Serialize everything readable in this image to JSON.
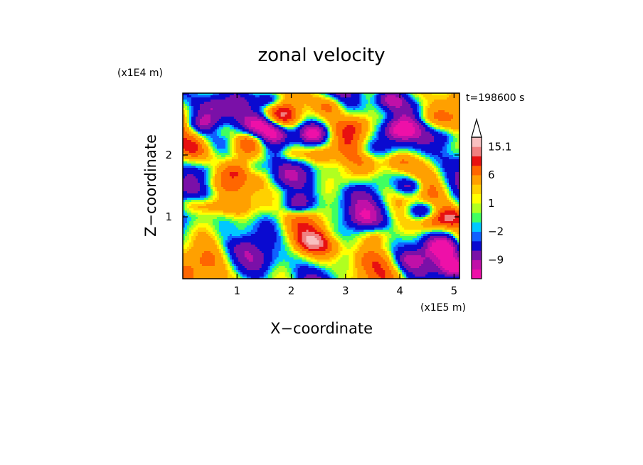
{
  "chart_data": {
    "type": "heatmap",
    "title": "zonal velocity",
    "xlabel": "X−coordinate",
    "ylabel": "Z−coordinate",
    "x_scale_label": "(x1E5 m)",
    "y_scale_label": "(x1E4 m)",
    "time_label": "t=198600 s",
    "xlim": [
      0,
      5.1
    ],
    "ylim": [
      0,
      3.0
    ],
    "x_ticks": [
      1,
      2,
      3,
      4,
      5
    ],
    "y_ticks": [
      1,
      2
    ],
    "colorbar": {
      "bounds": [
        -15,
        -12,
        -9,
        -6,
        -3,
        -2,
        -1,
        0,
        1,
        2,
        3,
        6,
        9,
        12,
        15.1
      ],
      "colors": [
        "#ee10a8",
        "#c010a8",
        "#7a10a8",
        "#0a0ad0",
        "#1060ff",
        "#00c8ff",
        "#40ff60",
        "#b0ff20",
        "#ffff00",
        "#ffd000",
        "#ffa000",
        "#ff6600",
        "#e81010",
        "#f08080",
        "#f8c0c0"
      ],
      "labels": [
        "15.1",
        "6",
        "1",
        "−2",
        "−9"
      ],
      "label_values": [
        15.1,
        6,
        1,
        -2,
        -9
      ],
      "extend": "max"
    },
    "field": {
      "blobs": [
        {
          "x": 0.2,
          "z": 1.2,
          "v": 8
        },
        {
          "x": 0.55,
          "z": 1.15,
          "v": 6
        },
        {
          "x": 0.9,
          "z": 1.3,
          "v": -3
        },
        {
          "x": 0.3,
          "z": 2.5,
          "v": -8
        },
        {
          "x": 0.2,
          "z": 2.1,
          "v": 5
        },
        {
          "x": 0.55,
          "z": 2.8,
          "v": -5
        },
        {
          "x": 0.7,
          "z": 2.4,
          "v": 6
        },
        {
          "x": 0.45,
          "z": 1.75,
          "v": -4
        },
        {
          "x": 1.0,
          "z": 1.75,
          "v": 6
        },
        {
          "x": 1.2,
          "z": 2.2,
          "v": 8
        },
        {
          "x": 1.3,
          "z": 1.8,
          "v": -7
        },
        {
          "x": 1.4,
          "z": 2.5,
          "v": -10
        },
        {
          "x": 1.6,
          "z": 2.9,
          "v": -12
        },
        {
          "x": 1.7,
          "z": 2.35,
          "v": -11
        },
        {
          "x": 1.85,
          "z": 2.65,
          "v": 6
        },
        {
          "x": 2.0,
          "z": 2.0,
          "v": 9
        },
        {
          "x": 2.5,
          "z": 2.0,
          "v": 7
        },
        {
          "x": 2.4,
          "z": 2.35,
          "v": -12
        },
        {
          "x": 2.1,
          "z": 1.2,
          "v": -11
        },
        {
          "x": 1.5,
          "z": 1.15,
          "v": 3
        },
        {
          "x": 1.0,
          "z": 0.7,
          "v": 4
        },
        {
          "x": 0.3,
          "z": 0.5,
          "v": -1
        },
        {
          "x": 1.5,
          "z": 0.3,
          "v": -2
        },
        {
          "x": 2.4,
          "z": 0.6,
          "v": 8
        },
        {
          "x": 2.8,
          "z": 0.5,
          "v": 4
        },
        {
          "x": 3.3,
          "z": 0.3,
          "v": 2
        },
        {
          "x": 2.7,
          "z": 1.2,
          "v": -1
        },
        {
          "x": 2.7,
          "z": 2.8,
          "v": 7
        },
        {
          "x": 3.2,
          "z": 2.5,
          "v": 5
        },
        {
          "x": 3.4,
          "z": 2.1,
          "v": -6
        },
        {
          "x": 3.3,
          "z": 1.0,
          "v": -4
        },
        {
          "x": 3.6,
          "z": 0.7,
          "v": 6
        },
        {
          "x": 3.6,
          "z": 1.6,
          "v": -2
        },
        {
          "x": 3.8,
          "z": 2.9,
          "v": -9
        },
        {
          "x": 4.0,
          "z": 2.4,
          "v": -10
        },
        {
          "x": 3.95,
          "z": 1.9,
          "v": 7
        },
        {
          "x": 4.2,
          "z": 1.5,
          "v": -11
        },
        {
          "x": 4.4,
          "z": 1.1,
          "v": -10
        },
        {
          "x": 4.6,
          "z": 0.9,
          "v": 8
        },
        {
          "x": 4.8,
          "z": 0.5,
          "v": -11
        },
        {
          "x": 4.95,
          "z": 1.0,
          "v": 9
        },
        {
          "x": 4.5,
          "z": 2.6,
          "v": 5
        },
        {
          "x": 4.85,
          "z": 2.3,
          "v": -6
        },
        {
          "x": 5.0,
          "z": 0.2,
          "v": -12
        },
        {
          "x": 4.2,
          "z": 0.3,
          "v": -6
        },
        {
          "x": 3.1,
          "z": 1.6,
          "v": 3
        },
        {
          "x": 1.8,
          "z": 1.6,
          "v": -3
        },
        {
          "x": 0.5,
          "z": 0.9,
          "v": 2
        }
      ],
      "waves": [
        {
          "kx": 2.1,
          "kz": 3.4,
          "a": 4.5,
          "p": 0.3
        },
        {
          "kx": 3.7,
          "kz": -2.2,
          "a": 3.5,
          "p": 1.1
        },
        {
          "kx": 6.5,
          "kz": 5.0,
          "a": 2.2,
          "p": 2.0
        }
      ]
    }
  }
}
